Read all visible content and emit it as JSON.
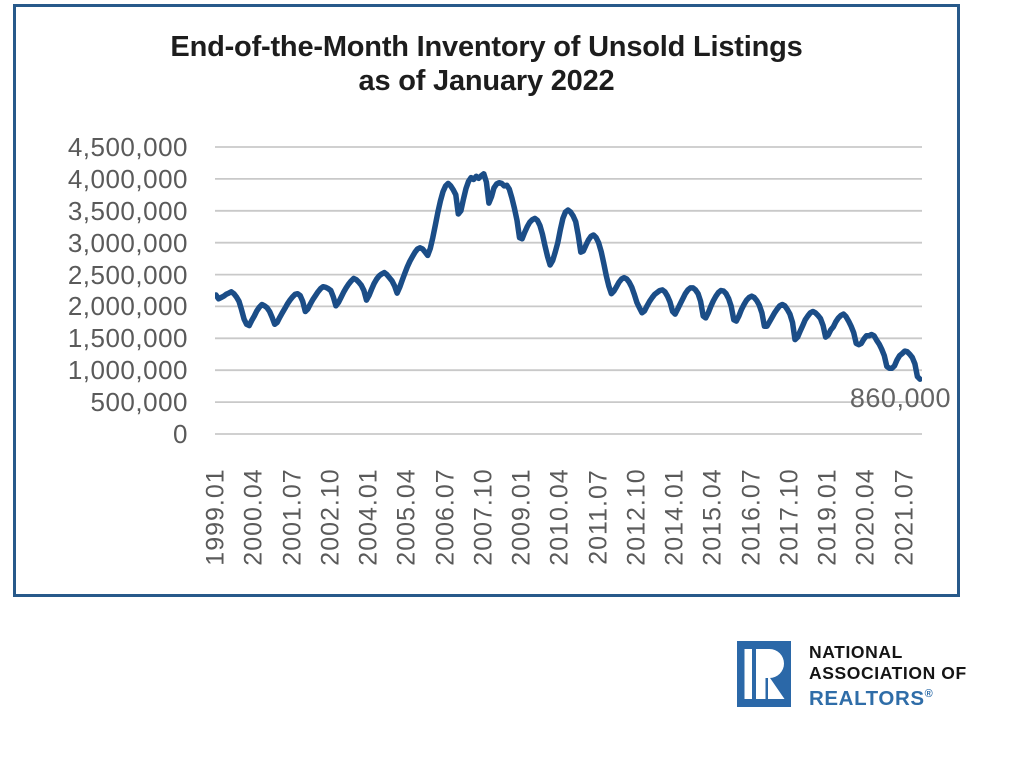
{
  "title": {
    "line1": "End-of-the-Month Inventory of Unsold Listings",
    "line2": "as of January 2022"
  },
  "chart_data": {
    "type": "line",
    "title": "End-of-the-Month Inventory of Unsold Listings as of January 2022",
    "xlabel": "",
    "ylabel": "",
    "ylim": [
      0,
      4500000
    ],
    "ytick_interval": 500000,
    "grid": true,
    "legend": false,
    "line_color": "#1b4d87",
    "grid_color": "#c9c9c9",
    "y_tick_labels": [
      "4,500,000",
      "4,000,000",
      "3,500,000",
      "3,000,000",
      "2,500,000",
      "2,000,000",
      "1,500,000",
      "1,000,000",
      "500,000",
      "0"
    ],
    "x_tick_labels": [
      "1999.01",
      "2000.04",
      "2001.07",
      "2002.10",
      "2004.01",
      "2005.04",
      "2006.07",
      "2007.10",
      "2009.01",
      "2010.04",
      "2011.07",
      "2012.10",
      "2014.01",
      "2015.04",
      "2016.07",
      "2017.10",
      "2019.01",
      "2020.04",
      "2021.07"
    ],
    "series": [
      {
        "name": "End-of-the-month inventory of unsold listings",
        "start": "1999.01",
        "end": "2022.01",
        "frequency": "monthly",
        "values": [
          2180,
          2120,
          2140,
          2160,
          2190,
          2210,
          2230,
          2200,
          2150,
          2080,
          1950,
          1800,
          1720,
          1700,
          1780,
          1850,
          1930,
          1990,
          2030,
          2010,
          1980,
          1920,
          1830,
          1720,
          1750,
          1830,
          1900,
          1970,
          2040,
          2100,
          2150,
          2190,
          2200,
          2170,
          2080,
          1920,
          1960,
          2040,
          2110,
          2170,
          2230,
          2280,
          2310,
          2300,
          2280,
          2250,
          2150,
          2010,
          2060,
          2140,
          2220,
          2290,
          2350,
          2400,
          2440,
          2420,
          2380,
          2330,
          2250,
          2100,
          2170,
          2270,
          2360,
          2430,
          2480,
          2510,
          2530,
          2500,
          2450,
          2400,
          2320,
          2210,
          2300,
          2410,
          2520,
          2620,
          2710,
          2780,
          2850,
          2900,
          2920,
          2900,
          2850,
          2800,
          2910,
          3080,
          3280,
          3480,
          3660,
          3800,
          3890,
          3930,
          3890,
          3830,
          3750,
          3450,
          3500,
          3680,
          3850,
          3960,
          4020,
          3990,
          4040,
          4010,
          4050,
          4080,
          3950,
          3620,
          3720,
          3860,
          3920,
          3940,
          3930,
          3890,
          3900,
          3840,
          3700,
          3540,
          3350,
          3080,
          3060,
          3160,
          3250,
          3320,
          3360,
          3380,
          3350,
          3270,
          3130,
          2950,
          2780,
          2650,
          2720,
          2850,
          3000,
          3200,
          3380,
          3480,
          3510,
          3480,
          3420,
          3330,
          3120,
          2850,
          2870,
          2960,
          3040,
          3100,
          3120,
          3080,
          3000,
          2860,
          2680,
          2480,
          2320,
          2200,
          2240,
          2310,
          2380,
          2430,
          2450,
          2430,
          2380,
          2300,
          2190,
          2060,
          1980,
          1900,
          1930,
          2010,
          2080,
          2140,
          2190,
          2220,
          2250,
          2260,
          2230,
          2160,
          2070,
          1920,
          1880,
          1960,
          2040,
          2120,
          2200,
          2260,
          2290,
          2290,
          2260,
          2200,
          2080,
          1850,
          1820,
          1900,
          2000,
          2090,
          2160,
          2220,
          2250,
          2240,
          2200,
          2120,
          2000,
          1790,
          1770,
          1850,
          1950,
          2030,
          2100,
          2140,
          2160,
          2140,
          2090,
          2020,
          1900,
          1690,
          1690,
          1760,
          1830,
          1900,
          1960,
          2010,
          2030,
          2010,
          1950,
          1880,
          1750,
          1480,
          1520,
          1610,
          1700,
          1790,
          1850,
          1900,
          1920,
          1900,
          1860,
          1810,
          1700,
          1520,
          1550,
          1630,
          1680,
          1760,
          1820,
          1860,
          1880,
          1840,
          1770,
          1690,
          1590,
          1420,
          1400,
          1420,
          1490,
          1540,
          1540,
          1560,
          1540,
          1470,
          1410,
          1330,
          1230,
          1060,
          1030,
          1030,
          1070,
          1160,
          1230,
          1260,
          1300,
          1290,
          1250,
          1200,
          1100,
          900,
          860
        ],
        "value_unit": "thousands"
      }
    ],
    "annotation": {
      "text": "860,000",
      "value": 860000,
      "at": "2022.01"
    }
  },
  "logo": {
    "letter": "R",
    "line1": "NATIONAL",
    "line2": "ASSOCIATION OF",
    "line3": "REALTORS",
    "reg_mark": "®",
    "block_blue": "#2b68a8",
    "text_blue": "#2f6da8"
  }
}
